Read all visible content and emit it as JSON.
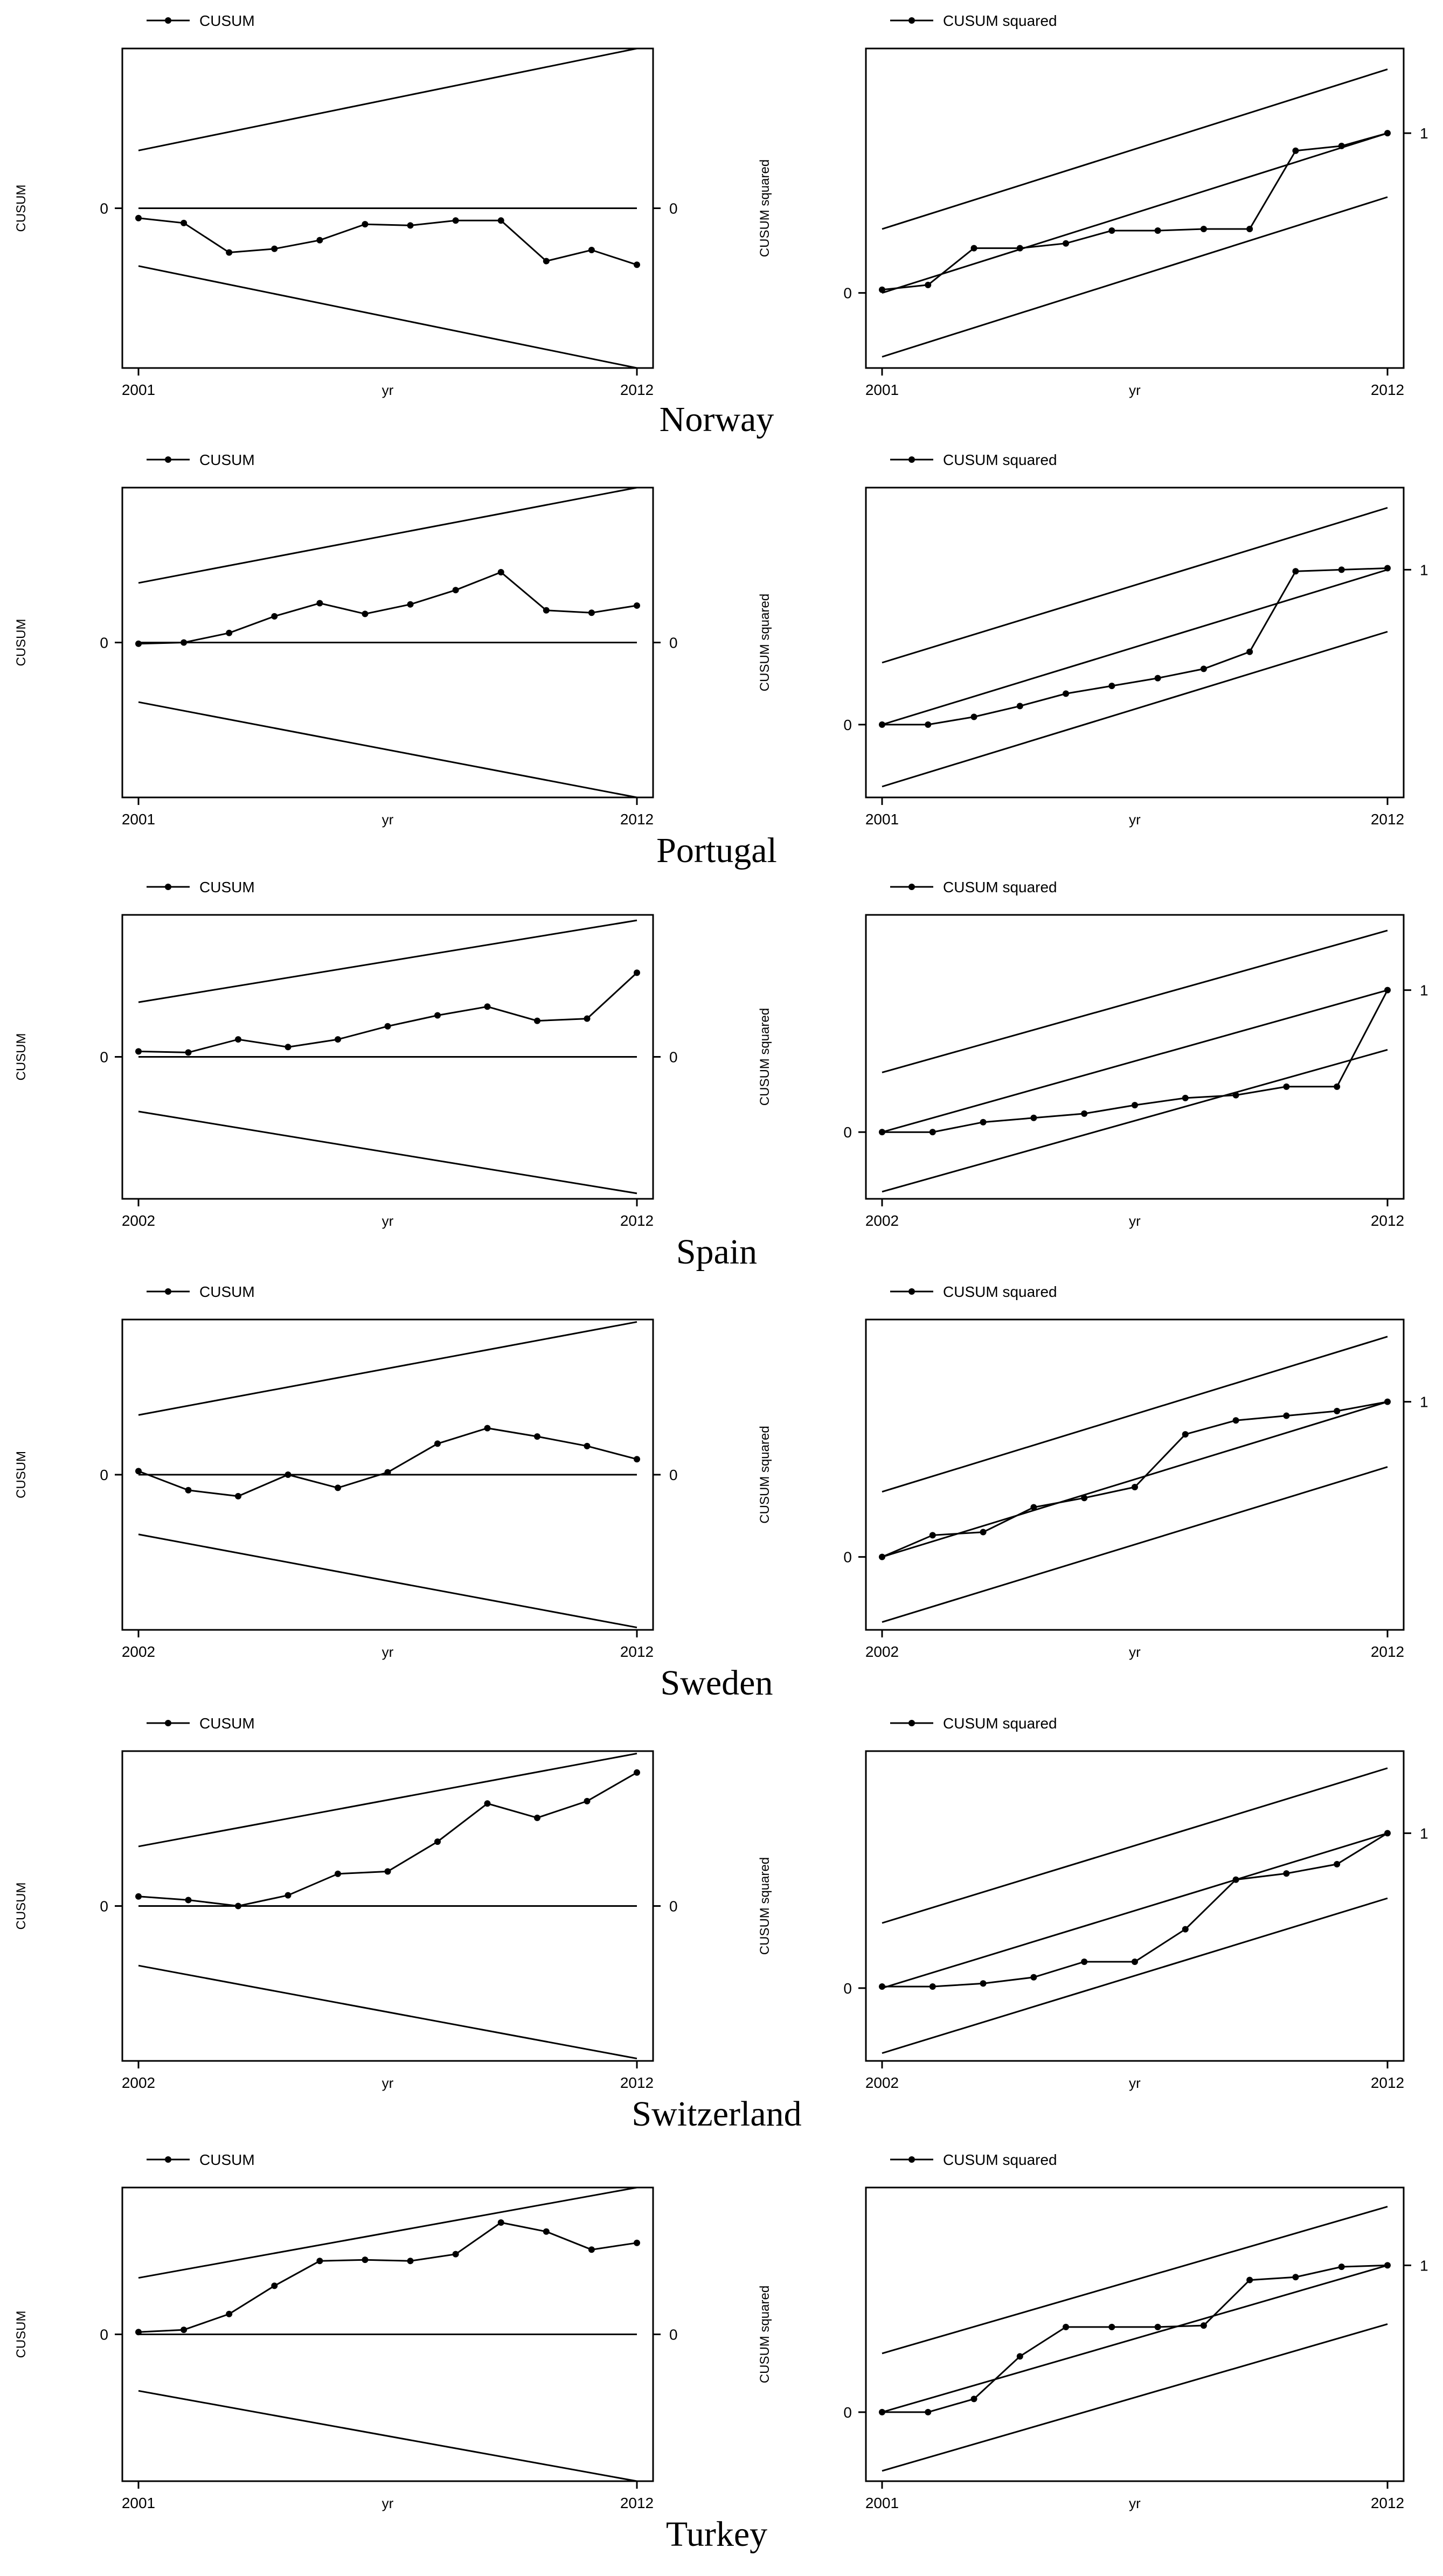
{
  "chart_data": [
    {
      "country": "Norway",
      "panels": [
        {
          "type": "line",
          "kind": "cusum",
          "legend": "CUSUM",
          "ylabel": "CUSUM",
          "xlabel": "yr",
          "x_start": 2001,
          "x_end": 2012,
          "x_ticks": [
            "2001",
            "2012"
          ],
          "y_tick_left": "0",
          "y_tick_right": "0",
          "ylim": [
            -1.3,
            1.3
          ],
          "band_left": 0.47,
          "band_right": 1.3,
          "values": [
            -0.08,
            -0.12,
            -0.36,
            -0.33,
            -0.26,
            -0.13,
            -0.14,
            -0.1,
            -0.1,
            -0.43,
            -0.34,
            -0.46
          ]
        },
        {
          "type": "line",
          "kind": "cusumsq",
          "legend": "CUSUM squared",
          "ylabel": "CUSUM squared",
          "xlabel": "yr",
          "x_start": 2001,
          "x_end": 2012,
          "x_ticks": [
            "2001",
            "2012"
          ],
          "y_tick_left": "0",
          "y_tick_right": "1",
          "ylim": [
            -0.47,
            1.53
          ],
          "band_offset": 0.4,
          "values": [
            0.02,
            0.05,
            0.28,
            0.28,
            0.31,
            0.39,
            0.39,
            0.4,
            0.4,
            0.89,
            0.92,
            1.0
          ]
        }
      ]
    },
    {
      "country": "Portugal",
      "panels": [
        {
          "type": "line",
          "kind": "cusum",
          "legend": "CUSUM",
          "ylabel": "CUSUM",
          "xlabel": "yr",
          "x_start": 2001,
          "x_end": 2012,
          "x_ticks": [
            "2001",
            "2012"
          ],
          "y_tick_left": "0",
          "y_tick_right": "0",
          "ylim": [
            -1.3,
            1.3
          ],
          "band_left": 0.5,
          "band_right": 1.3,
          "values": [
            -0.01,
            0.0,
            0.08,
            0.22,
            0.33,
            0.24,
            0.32,
            0.44,
            0.59,
            0.27,
            0.25,
            0.31
          ]
        },
        {
          "type": "line",
          "kind": "cusumsq",
          "legend": "CUSUM squared",
          "ylabel": "CUSUM squared",
          "xlabel": "yr",
          "x_start": 2001,
          "x_end": 2012,
          "x_ticks": [
            "2001",
            "2012"
          ],
          "y_tick_left": "0",
          "y_tick_right": "1",
          "ylim": [
            -0.47,
            1.53
          ],
          "band_offset": 0.4,
          "values": [
            0.0,
            0.0,
            0.05,
            0.12,
            0.2,
            0.25,
            0.3,
            0.36,
            0.47,
            0.99,
            1.0,
            1.01
          ]
        }
      ]
    },
    {
      "country": "Spain",
      "panels": [
        {
          "type": "line",
          "kind": "cusum",
          "legend": "CUSUM",
          "ylabel": "CUSUM",
          "xlabel": "yr",
          "x_start": 2002,
          "x_end": 2012,
          "x_ticks": [
            "2002",
            "2012"
          ],
          "y_tick_left": "0",
          "y_tick_right": "0",
          "ylim": [
            -1.3,
            1.3
          ],
          "band_left": 0.5,
          "band_right": 1.25,
          "values": [
            0.05,
            0.04,
            0.16,
            0.09,
            0.16,
            0.28,
            0.38,
            0.46,
            0.33,
            0.35,
            0.77
          ]
        },
        {
          "type": "line",
          "kind": "cusumsq",
          "legend": "CUSUM squared",
          "ylabel": "CUSUM squared",
          "xlabel": "yr",
          "x_start": 2002,
          "x_end": 2012,
          "x_ticks": [
            "2002",
            "2012"
          ],
          "y_tick_left": "0",
          "y_tick_right": "1",
          "ylim": [
            -0.47,
            1.53
          ],
          "band_offset": 0.42,
          "values": [
            0.0,
            0.0,
            0.07,
            0.1,
            0.13,
            0.19,
            0.24,
            0.26,
            0.32,
            0.32,
            1.0
          ]
        }
      ]
    },
    {
      "country": "Sweden",
      "panels": [
        {
          "type": "line",
          "kind": "cusum",
          "legend": "CUSUM",
          "ylabel": "CUSUM",
          "xlabel": "yr",
          "x_start": 2002,
          "x_end": 2012,
          "x_ticks": [
            "2002",
            "2012"
          ],
          "y_tick_left": "0",
          "y_tick_right": "0",
          "ylim": [
            -1.3,
            1.3
          ],
          "band_left": 0.5,
          "band_right": 1.28,
          "values": [
            0.03,
            -0.13,
            -0.18,
            0.0,
            -0.11,
            0.02,
            0.26,
            0.39,
            0.32,
            0.24,
            0.13
          ]
        },
        {
          "type": "line",
          "kind": "cusumsq",
          "legend": "CUSUM squared",
          "ylabel": "CUSUM squared",
          "xlabel": "yr",
          "x_start": 2002,
          "x_end": 2012,
          "x_ticks": [
            "2002",
            "2012"
          ],
          "y_tick_left": "0",
          "y_tick_right": "1",
          "ylim": [
            -0.47,
            1.53
          ],
          "band_offset": 0.42,
          "values": [
            0.0,
            0.14,
            0.16,
            0.32,
            0.38,
            0.45,
            0.79,
            0.88,
            0.91,
            0.94,
            1.0
          ]
        }
      ]
    },
    {
      "country": "Switzerland",
      "panels": [
        {
          "type": "line",
          "kind": "cusum",
          "legend": "CUSUM",
          "ylabel": "CUSUM",
          "xlabel": "yr",
          "x_start": 2002,
          "x_end": 2012,
          "x_ticks": [
            "2002",
            "2012"
          ],
          "y_tick_left": "0",
          "y_tick_right": "0",
          "ylim": [
            -1.3,
            1.3
          ],
          "band_left": 0.5,
          "band_right": 1.28,
          "values": [
            0.08,
            0.05,
            0.0,
            0.09,
            0.27,
            0.29,
            0.54,
            0.86,
            0.74,
            0.88,
            1.12
          ]
        },
        {
          "type": "line",
          "kind": "cusumsq",
          "legend": "CUSUM squared",
          "ylabel": "CUSUM squared",
          "xlabel": "yr",
          "x_start": 2002,
          "x_end": 2012,
          "x_ticks": [
            "2002",
            "2012"
          ],
          "y_tick_left": "0",
          "y_tick_right": "1",
          "ylim": [
            -0.47,
            1.53
          ],
          "band_offset": 0.42,
          "values": [
            0.01,
            0.01,
            0.03,
            0.07,
            0.17,
            0.17,
            0.38,
            0.7,
            0.74,
            0.8,
            1.0
          ]
        }
      ]
    },
    {
      "country": "Turkey",
      "panels": [
        {
          "type": "line",
          "kind": "cusum",
          "legend": "CUSUM",
          "ylabel": "CUSUM",
          "xlabel": "yr",
          "x_start": 2001,
          "x_end": 2012,
          "x_ticks": [
            "2001",
            "2012"
          ],
          "y_tick_left": "0",
          "y_tick_right": "0",
          "ylim": [
            -1.3,
            1.3
          ],
          "band_left": 0.5,
          "band_right": 1.3,
          "values": [
            0.02,
            0.04,
            0.18,
            0.43,
            0.65,
            0.66,
            0.65,
            0.71,
            0.99,
            0.91,
            0.75,
            0.81
          ]
        },
        {
          "type": "line",
          "kind": "cusumsq",
          "legend": "CUSUM squared",
          "ylabel": "CUSUM squared",
          "xlabel": "yr",
          "x_start": 2001,
          "x_end": 2012,
          "x_ticks": [
            "2001",
            "2012"
          ],
          "y_tick_left": "0",
          "y_tick_right": "1",
          "ylim": [
            -0.47,
            1.53
          ],
          "band_offset": 0.4,
          "values": [
            0.0,
            0.0,
            0.09,
            0.38,
            0.58,
            0.58,
            0.58,
            0.59,
            0.9,
            0.92,
            0.99,
            1.0
          ]
        }
      ]
    }
  ]
}
